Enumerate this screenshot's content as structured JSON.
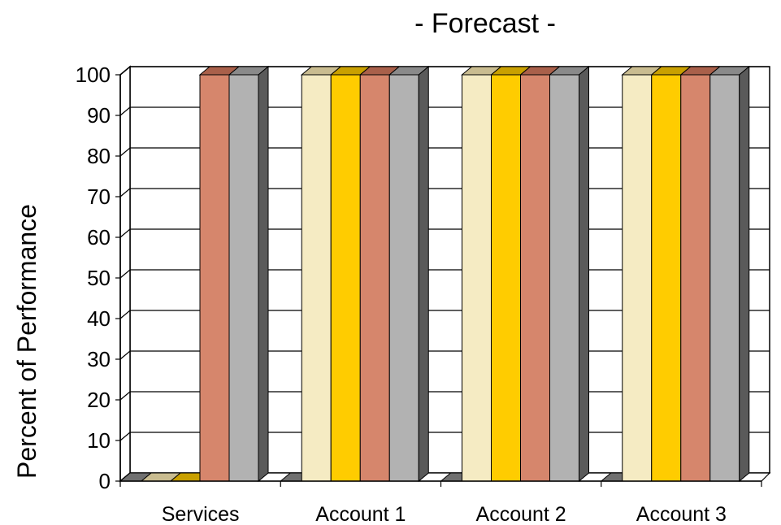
{
  "chart_data": {
    "type": "bar",
    "title": "-  Forecast  -",
    "ylabel": "Percent of Performance",
    "xlabel": "",
    "categories": [
      "Services",
      "Account 1",
      "Account 2",
      "Account 3"
    ],
    "series": [
      {
        "values": [
          0,
          100,
          100,
          100
        ],
        "color": "#F5EBC3",
        "top_color": "#C9BC90",
        "side_color": "#8C8466"
      },
      {
        "values": [
          0,
          100,
          100,
          100
        ],
        "color": "#FFCC00",
        "top_color": "#C9A000",
        "side_color": "#8A6E00"
      },
      {
        "values": [
          100,
          100,
          100,
          100
        ],
        "color": "#D6866C",
        "top_color": "#A9604A",
        "side_color": "#7A4535"
      },
      {
        "values": [
          100,
          100,
          100,
          100
        ],
        "color": "#B2B2B2",
        "top_color": "#8A8A8A",
        "side_color": "#5A5A5A"
      }
    ],
    "ylim": [
      0,
      100
    ],
    "yticks": [
      0,
      10,
      20,
      30,
      40,
      50,
      60,
      70,
      80,
      90,
      100
    ],
    "grid": true,
    "legend": "none"
  }
}
